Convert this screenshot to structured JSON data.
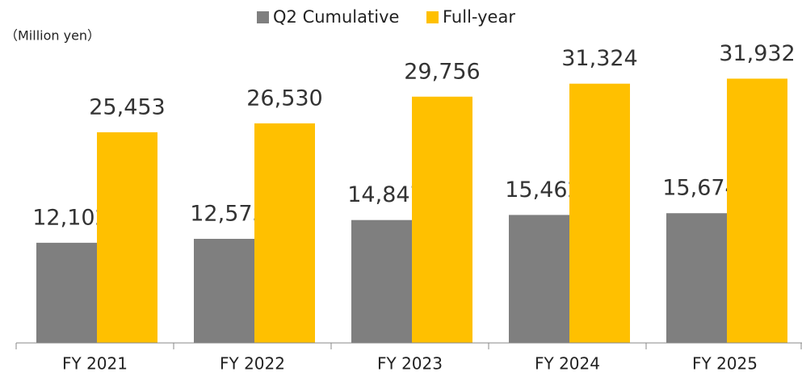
{
  "chart_data": {
    "type": "bar",
    "y_label": "（Million yen）",
    "categories": [
      "FY 2021",
      "FY 2022",
      "FY 2023",
      "FY 2024",
      "FY 2025"
    ],
    "series": [
      {
        "name": "Q2 Cumulative",
        "color": "#7f7f7f",
        "values": [
          12102,
          12575,
          14847,
          15462,
          15674
        ],
        "value_labels": [
          "12,102",
          "12,575",
          "14,847",
          "15,462",
          "15,674"
        ]
      },
      {
        "name": "Full-year",
        "color": "#ffc000",
        "values": [
          25453,
          26530,
          29756,
          31324,
          31932
        ],
        "value_labels": [
          "25,453",
          "26,530",
          "29,756",
          "31,324",
          "31,932"
        ]
      }
    ],
    "ylim": [
      0,
      35000
    ]
  }
}
